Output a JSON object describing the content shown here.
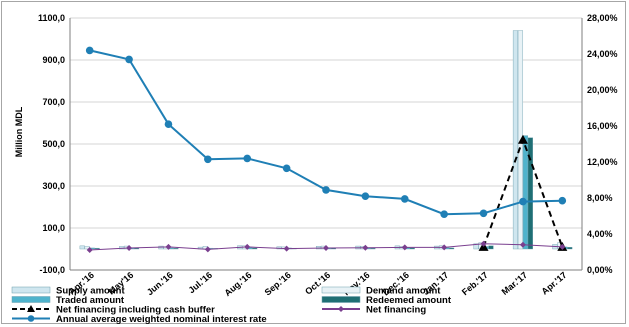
{
  "chart_data": {
    "type": "bar",
    "categories": [
      "Apr.'16",
      "May'16",
      "Jun.'16",
      "Jul.'16",
      "Aug.'16",
      "Sep.'16",
      "Oct.'16",
      "Nov.'16",
      "Dec.'16",
      "Jan.'17",
      "Feb.'17",
      "Mar.'17",
      "Apr.'17"
    ],
    "ylabel": "Million MDL",
    "ylim": [
      -100,
      1100
    ],
    "yticks": [
      "-100,0",
      "100,0",
      "300,0",
      "500,0",
      "700,0",
      "900,0",
      "1100,0"
    ],
    "ytick_values": [
      -100,
      100,
      300,
      500,
      700,
      900,
      1100
    ],
    "y2lim": [
      0,
      28
    ],
    "y2ticks": [
      "0,00%",
      "4,00%",
      "8,00%",
      "12,00%",
      "16,00%",
      "20,00%",
      "24,00%",
      "28,00%"
    ],
    "y2tick_values": [
      0,
      4,
      8,
      12,
      16,
      20,
      24,
      28
    ],
    "grid": true,
    "legend_position": "bottom",
    "series": [
      {
        "name": "Supply amount",
        "kind": "bar",
        "axis": "left",
        "color": "#cfe6ef",
        "values": [
          15,
          12,
          14,
          9,
          16,
          11,
          13,
          14,
          15,
          14,
          25,
          1040,
          22
        ]
      },
      {
        "name": "Demand amount",
        "kind": "bar",
        "axis": "left",
        "color": "#e8f2f6",
        "values": [
          12,
          14,
          11,
          13,
          15,
          10,
          14,
          13,
          12,
          16,
          30,
          1040,
          30
        ]
      },
      {
        "name": "Traded amount",
        "kind": "bar",
        "axis": "left",
        "color": "#4fb3cc",
        "values": [
          5,
          6,
          5,
          4,
          7,
          5,
          6,
          5,
          6,
          6,
          12,
          540,
          10
        ]
      },
      {
        "name": "Redeemed amount",
        "kind": "bar",
        "axis": "left",
        "color": "#1f6f74",
        "values": [
          4,
          5,
          4,
          3,
          5,
          4,
          5,
          4,
          5,
          5,
          15,
          530,
          8
        ]
      },
      {
        "name": "Net financing including cash buffer",
        "kind": "line",
        "axis": "left",
        "color": "#000000",
        "values": [
          null,
          null,
          null,
          null,
          null,
          null,
          null,
          null,
          null,
          null,
          10,
          520,
          10
        ]
      },
      {
        "name": "Net financing",
        "kind": "line",
        "axis": "left",
        "color": "#7a3f8f",
        "values": [
          -5,
          5,
          10,
          -2,
          10,
          2,
          5,
          6,
          8,
          8,
          25,
          20,
          10
        ]
      },
      {
        "name": "Annual average weighted nominal interest rate",
        "kind": "line",
        "axis": "right",
        "color": "#1f7fb5",
        "values": [
          24.4,
          23.4,
          16.2,
          12.3,
          12.4,
          11.3,
          8.9,
          8.2,
          7.9,
          6.2,
          6.3,
          7.6,
          7.7
        ]
      }
    ]
  }
}
